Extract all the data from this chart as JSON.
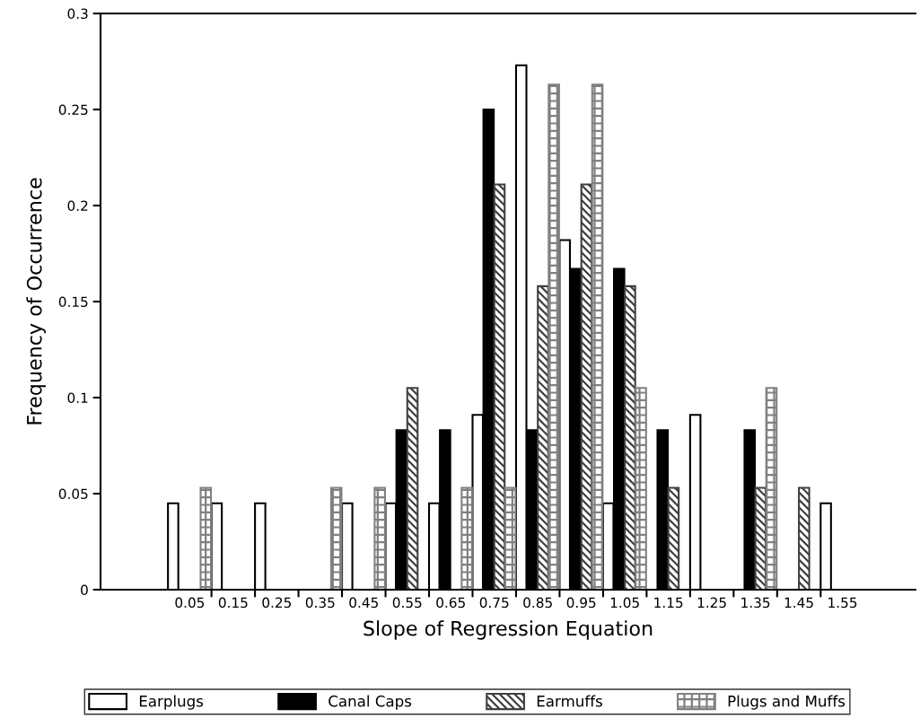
{
  "chart_data": {
    "type": "bar",
    "xlabel": "Slope of Regression Equation",
    "ylabel": "Frequency of Occurrence",
    "categories": [
      "0.05",
      "0.15",
      "0.25",
      "0.35",
      "0.45",
      "0.55",
      "0.65",
      "0.75",
      "0.85",
      "0.95",
      "1.05",
      "1.15",
      "1.25",
      "1.35",
      "1.45",
      "1.55"
    ],
    "series": [
      {
        "name": "Earplugs",
        "color": "#ffffff",
        "values": [
          0.045,
          0.045,
          0.045,
          null,
          0.045,
          0.045,
          0.045,
          0.091,
          0.273,
          0.182,
          0.045,
          null,
          0.091,
          null,
          null,
          0.045
        ]
      },
      {
        "name": "Canal Caps",
        "color": "#000000",
        "values": [
          null,
          null,
          null,
          null,
          null,
          0.083,
          0.083,
          0.25,
          0.083,
          0.167,
          0.167,
          0.083,
          null,
          0.083,
          null,
          null
        ]
      },
      {
        "name": "Earmuffs",
        "color": "#404040",
        "values": [
          null,
          null,
          null,
          null,
          null,
          0.105,
          null,
          0.211,
          0.158,
          0.211,
          0.158,
          0.053,
          null,
          0.053,
          0.053,
          null
        ]
      },
      {
        "name": "Plugs and Muffs",
        "color": "#808080",
        "values": [
          0.053,
          null,
          null,
          0.053,
          0.053,
          null,
          0.053,
          0.053,
          0.263,
          0.263,
          0.105,
          null,
          null,
          0.105,
          null,
          null
        ]
      }
    ],
    "ylim": [
      0,
      0.3
    ],
    "yticks": [
      0,
      0.05,
      0.1,
      0.15,
      0.2,
      0.25,
      0.3
    ],
    "grid": false,
    "legend": "bottom"
  }
}
